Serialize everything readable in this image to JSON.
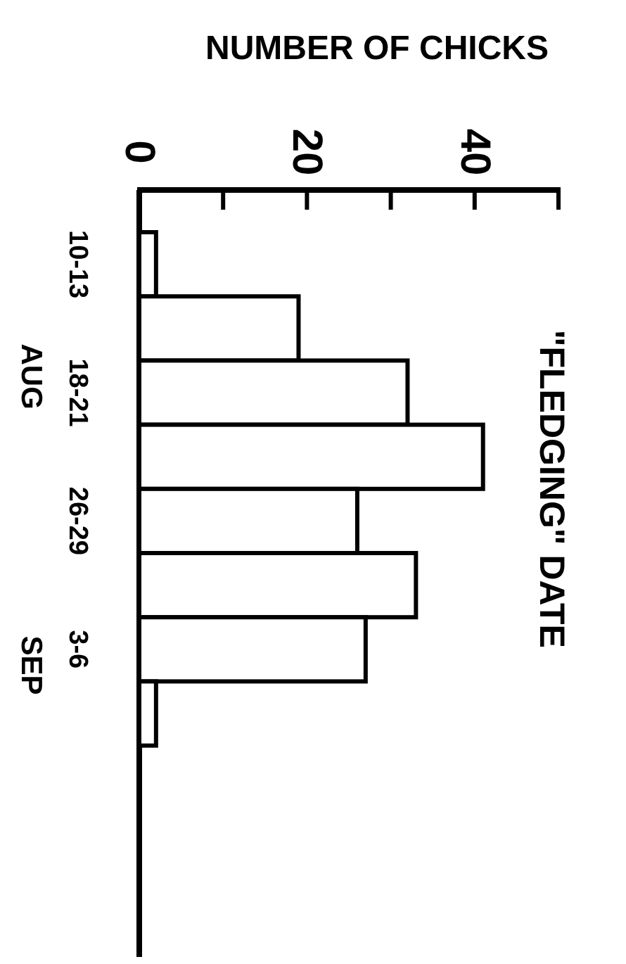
{
  "chart_data": {
    "type": "bar",
    "orientation": "horizontal",
    "xlabel": "NUMBER OF CHICKS",
    "ylabel": "\"FLEDGING\" DATE",
    "categories": [
      "10-13",
      null,
      "18-21",
      null,
      "26-29",
      null,
      "3-6",
      null,
      null,
      null,
      null
    ],
    "values": [
      2,
      19,
      32,
      41,
      26,
      33,
      27,
      2,
      null,
      null,
      null
    ],
    "color": "#ffffff",
    "xlim": [
      0,
      50
    ],
    "xticks": [
      0,
      {
        "value": 10,
        "label": null
      },
      20,
      {
        "value": 30,
        "label": null
      },
      40,
      {
        "value": 50,
        "label": null
      }
    ],
    "annotations": [
      "AUG",
      "SEP"
    ],
    "grid": false
  }
}
